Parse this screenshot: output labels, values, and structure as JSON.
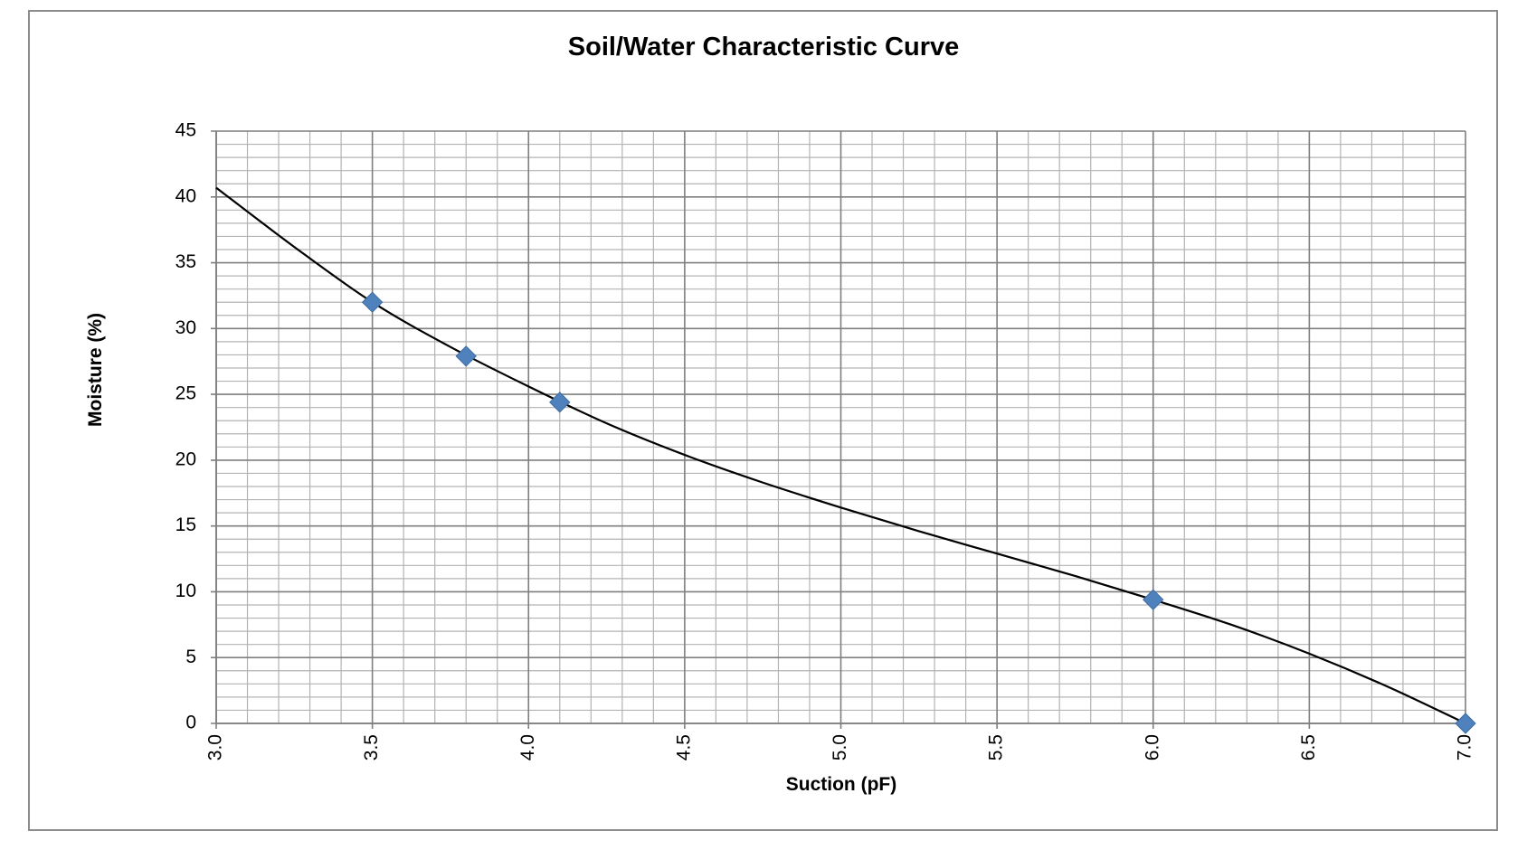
{
  "chart_data": {
    "type": "scatter",
    "title": "Soil/Water Characteristic Curve",
    "xlabel": "Suction (pF)",
    "ylabel": "Moisture (%)",
    "xlim": [
      3.0,
      7.0
    ],
    "ylim": [
      0,
      45
    ],
    "x_ticks": [
      "3.0",
      "3.5",
      "4.0",
      "4.5",
      "5.0",
      "5.5",
      "6.0",
      "6.5",
      "7.0"
    ],
    "y_ticks": [
      "0",
      "5",
      "10",
      "15",
      "20",
      "25",
      "30",
      "35",
      "40",
      "45"
    ],
    "grid": true,
    "legend": "none",
    "series": [
      {
        "type": "scatter",
        "marker": "diamond",
        "color": "#4f81bd",
        "x": [
          3.5,
          3.8,
          4.1,
          6.0,
          7.0
        ],
        "y": [
          32.0,
          27.9,
          24.4,
          9.4,
          0.0
        ]
      },
      {
        "type": "line",
        "style": "trendline",
        "color": "#000000",
        "x": [
          3.0,
          3.25,
          3.5,
          3.75,
          4.0,
          4.25,
          4.5,
          4.75,
          5.0,
          5.25,
          5.5,
          5.75,
          6.0,
          6.25,
          6.5,
          6.75,
          7.0
        ],
        "y": [
          40.7,
          36.2,
          32.0,
          28.6,
          25.6,
          22.8,
          20.4,
          18.3,
          16.4,
          14.6,
          12.9,
          11.2,
          9.4,
          7.5,
          5.3,
          2.8,
          0.0
        ]
      }
    ]
  }
}
